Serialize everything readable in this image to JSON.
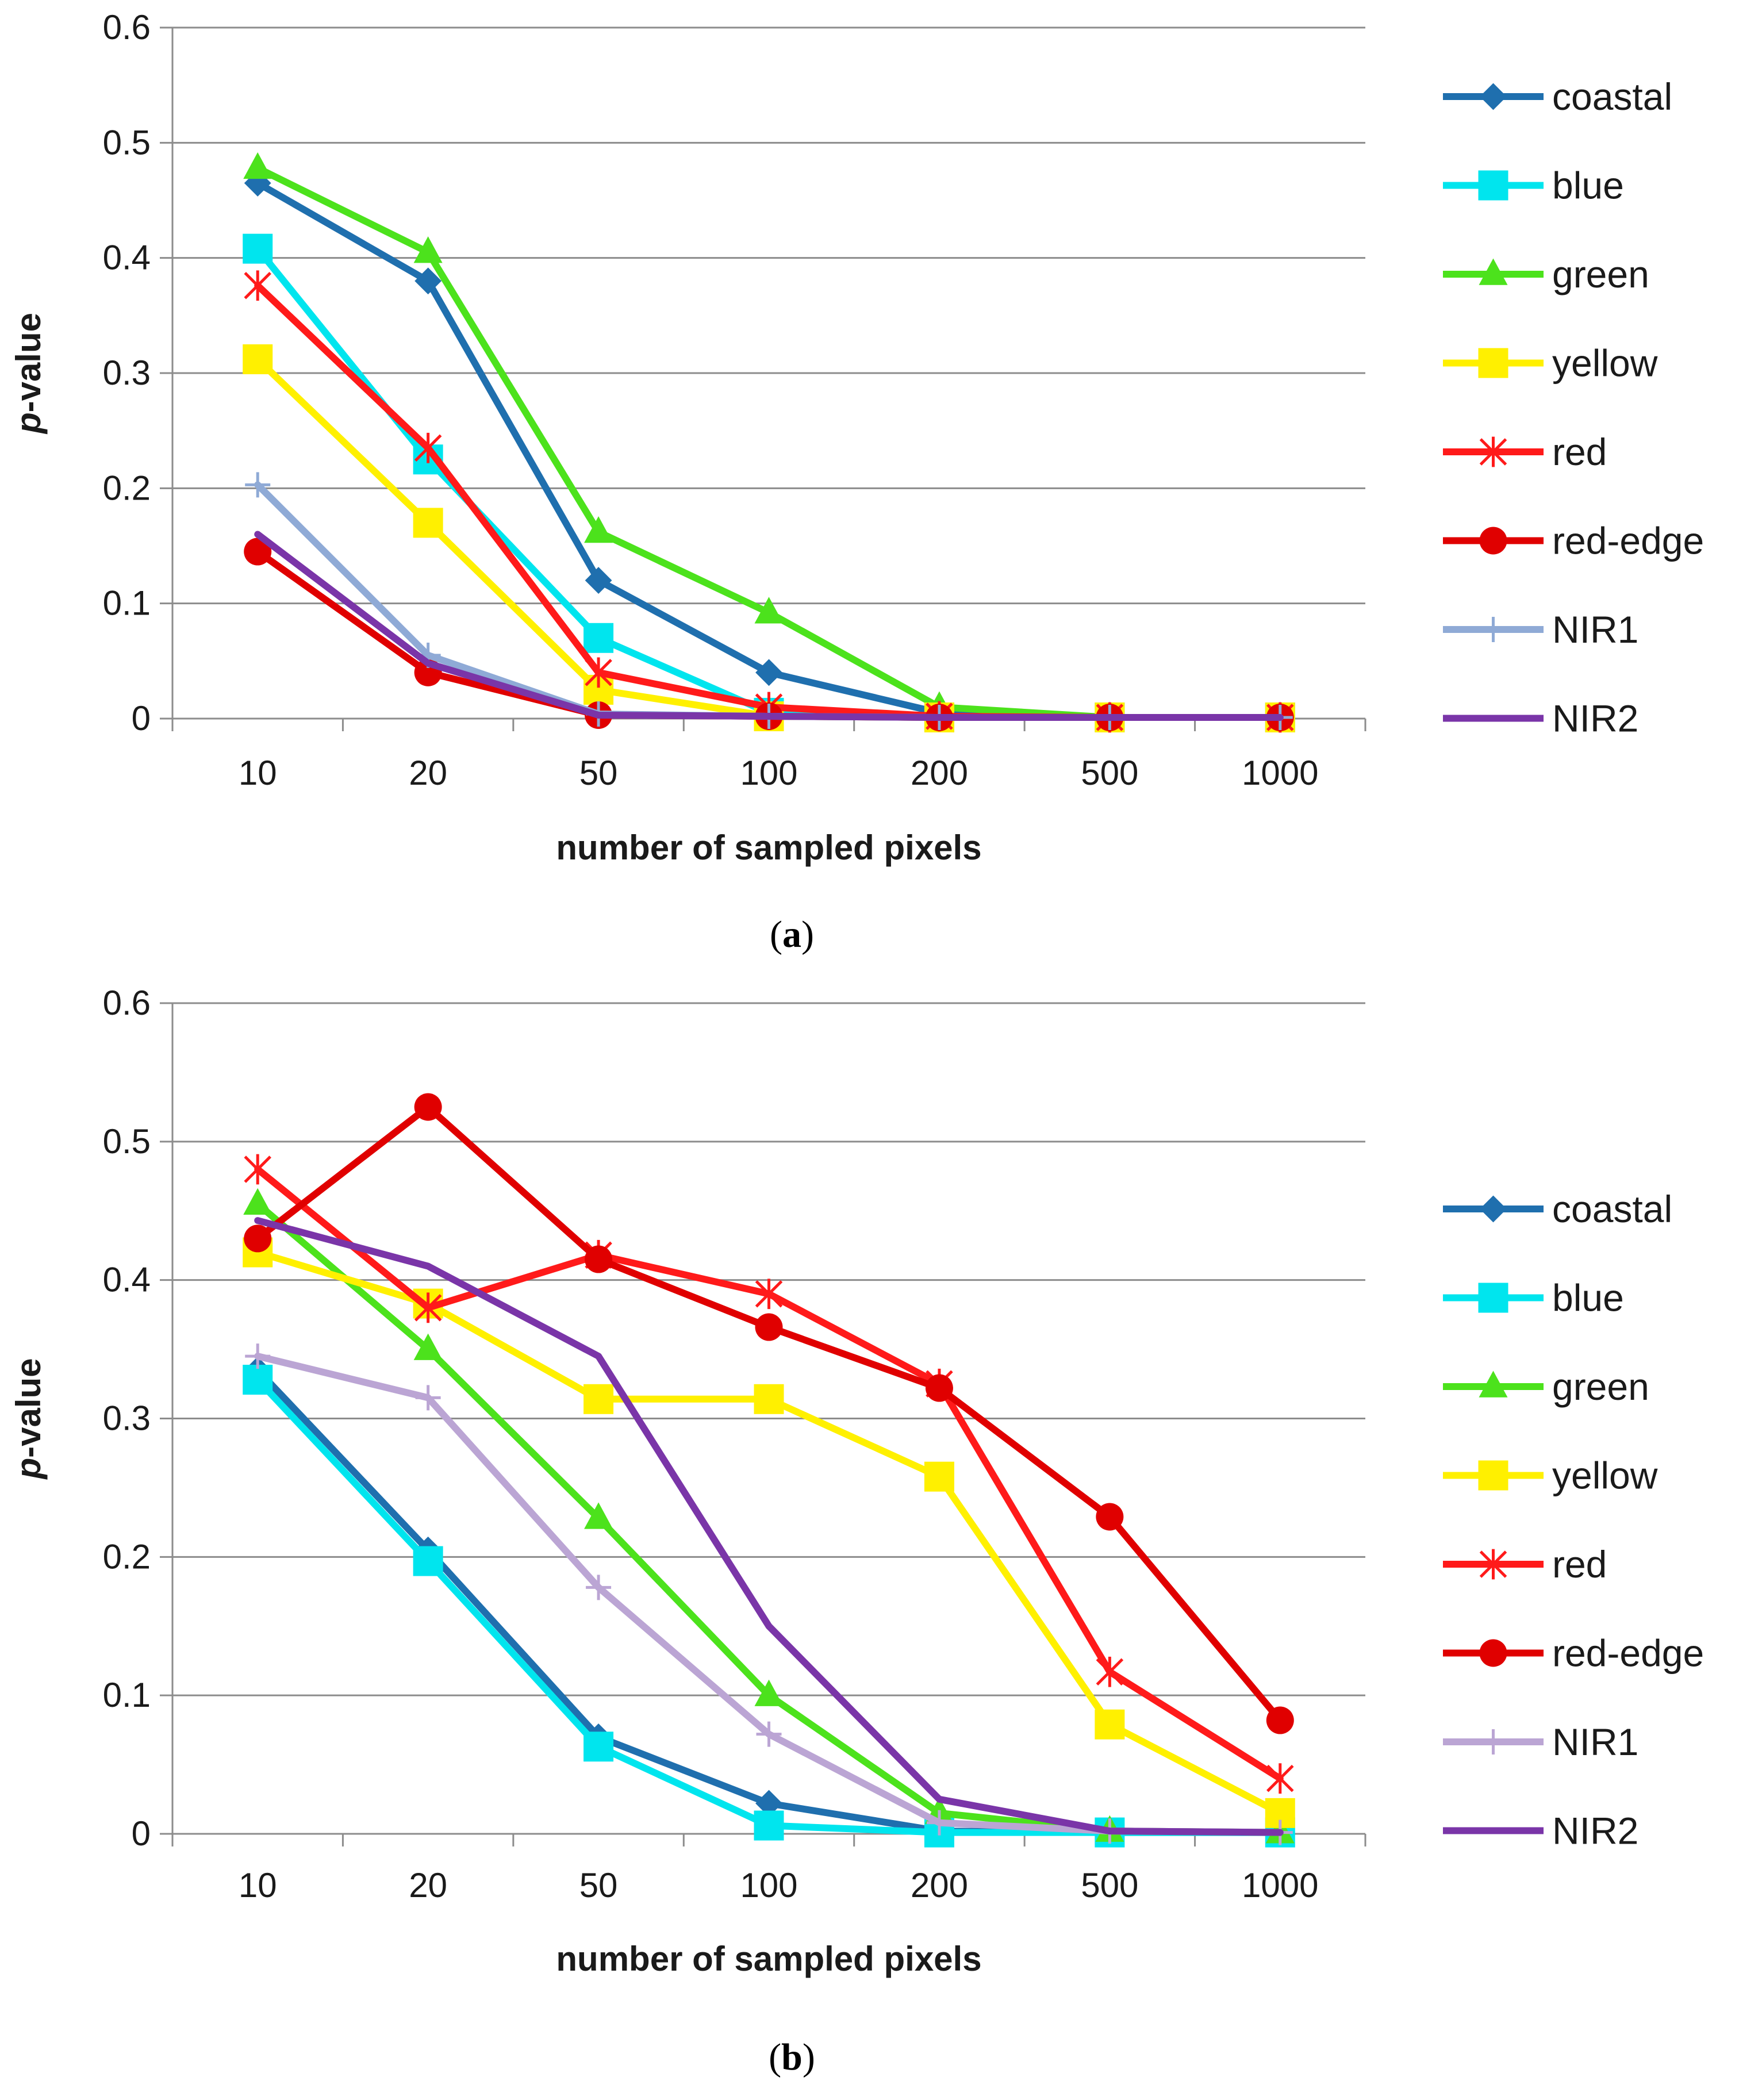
{
  "chart_data": [
    {
      "panel": "a",
      "type": "line",
      "xlabel": "number of sampled pixels",
      "ylabel_italic": "p",
      "ylabel_rest": "-value",
      "categories": [
        "10",
        "20",
        "50",
        "100",
        "200",
        "500",
        "1000"
      ],
      "yticks": [
        "0",
        "0.1",
        "0.2",
        "0.3",
        "0.4",
        "0.5",
        "0.6"
      ],
      "ylim": [
        0,
        0.6
      ],
      "grid": true,
      "legend_position": "right",
      "panel_label": "a",
      "series": [
        {
          "name": "coastal",
          "color": "#1F6FAE",
          "marker": "diamond",
          "values": [
            0.465,
            0.38,
            0.12,
            0.04,
            0.005,
            0.001,
            0.001
          ]
        },
        {
          "name": "blue",
          "color": "#00E5EE",
          "marker": "square",
          "values": [
            0.408,
            0.225,
            0.07,
            0.005,
            0.001,
            0.001,
            0.001
          ]
        },
        {
          "name": "green",
          "color": "#4CE21C",
          "marker": "triangle",
          "values": [
            0.478,
            0.405,
            0.162,
            0.092,
            0.01,
            0.001,
            0.001
          ]
        },
        {
          "name": "yellow",
          "color": "#FFF000",
          "marker": "square",
          "values": [
            0.312,
            0.17,
            0.025,
            0.002,
            0.001,
            0.001,
            0.001
          ]
        },
        {
          "name": "red",
          "color": "#FF1A1A",
          "marker": "asterisk",
          "values": [
            0.376,
            0.235,
            0.04,
            0.01,
            0.002,
            0.001,
            0.001
          ]
        },
        {
          "name": "red-edge",
          "color": "#E00000",
          "marker": "circle",
          "values": [
            0.145,
            0.04,
            0.003,
            0.002,
            0.001,
            0.001,
            0.001
          ]
        },
        {
          "name": "NIR1",
          "color": "#8FAAD6",
          "marker": "plus",
          "values": [
            0.203,
            0.055,
            0.004,
            0.002,
            0.001,
            0.001,
            0.001
          ]
        },
        {
          "name": "NIR2",
          "color": "#7A35A8",
          "marker": "none",
          "values": [
            0.16,
            0.048,
            0.003,
            0.002,
            0.001,
            0.001,
            0.001
          ]
        }
      ]
    },
    {
      "panel": "b",
      "type": "line",
      "xlabel": "number of sampled pixels",
      "ylabel_italic": "p",
      "ylabel_rest": "-value",
      "categories": [
        "10",
        "20",
        "50",
        "100",
        "200",
        "500",
        "1000"
      ],
      "yticks": [
        "0",
        "0.1",
        "0.2",
        "0.3",
        "0.4",
        "0.5",
        "0.6"
      ],
      "ylim": [
        0,
        0.6
      ],
      "grid": true,
      "legend_position": "right",
      "panel_label": "b",
      "series": [
        {
          "name": "coastal",
          "color": "#1F6FAE",
          "marker": "diamond",
          "values": [
            0.335,
            0.205,
            0.07,
            0.022,
            0.002,
            0.001,
            0.001
          ]
        },
        {
          "name": "blue",
          "color": "#00E5EE",
          "marker": "square",
          "values": [
            0.328,
            0.197,
            0.063,
            0.006,
            0.001,
            0.001,
            0.001
          ]
        },
        {
          "name": "green",
          "color": "#4CE21C",
          "marker": "triangle",
          "values": [
            0.455,
            0.35,
            0.228,
            0.1,
            0.015,
            0.002,
            0.001
          ]
        },
        {
          "name": "yellow",
          "color": "#FFF000",
          "marker": "square",
          "values": [
            0.42,
            0.383,
            0.314,
            0.314,
            0.258,
            0.079,
            0.015
          ]
        },
        {
          "name": "red",
          "color": "#FF1A1A",
          "marker": "asterisk",
          "values": [
            0.48,
            0.38,
            0.418,
            0.39,
            0.325,
            0.117,
            0.04
          ]
        },
        {
          "name": "red-edge",
          "color": "#E00000",
          "marker": "circle",
          "values": [
            0.43,
            0.525,
            0.415,
            0.366,
            0.322,
            0.229,
            0.082
          ]
        },
        {
          "name": "NIR1",
          "color": "#BBA5D4",
          "marker": "plus",
          "values": [
            0.345,
            0.315,
            0.178,
            0.072,
            0.008,
            0.002,
            0.001
          ]
        },
        {
          "name": "NIR2",
          "color": "#7A35A8",
          "marker": "none",
          "values": [
            0.443,
            0.41,
            0.345,
            0.15,
            0.025,
            0.002,
            0.001
          ]
        }
      ]
    }
  ]
}
